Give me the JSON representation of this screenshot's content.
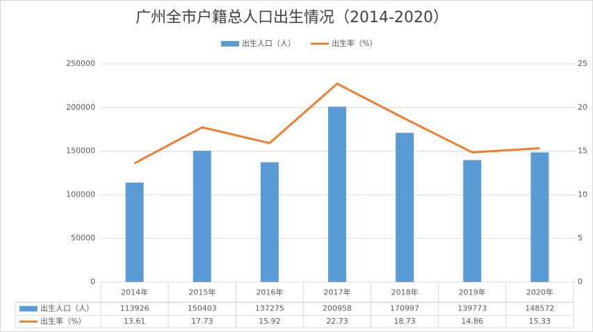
{
  "chart_data": {
    "type": "bar-line",
    "title": "广州全市户籍总人口出生情况（2014-2020）",
    "categories": [
      "2014年",
      "2015年",
      "2016年",
      "2017年",
      "2018年",
      "2019年",
      "2020年"
    ],
    "series": [
      {
        "name": "出生人口（人）",
        "type": "bar",
        "color": "#5b9bd5",
        "values": [
          113926,
          150403,
          137275,
          200958,
          170997,
          139773,
          148572
        ]
      },
      {
        "name": "出生率（%）",
        "type": "line",
        "color": "#ed7d31",
        "axis": "y2",
        "values": [
          13.61,
          17.73,
          15.92,
          22.73,
          18.73,
          14.86,
          15.33
        ]
      }
    ],
    "ylim": [
      0,
      250000
    ],
    "yticks": [
      0,
      50000,
      100000,
      150000,
      200000,
      250000
    ],
    "y2lim": [
      0,
      25
    ],
    "y2ticks": [
      0,
      5,
      10,
      15,
      20,
      25
    ],
    "grid": true,
    "legend": "top",
    "data_table": true
  }
}
